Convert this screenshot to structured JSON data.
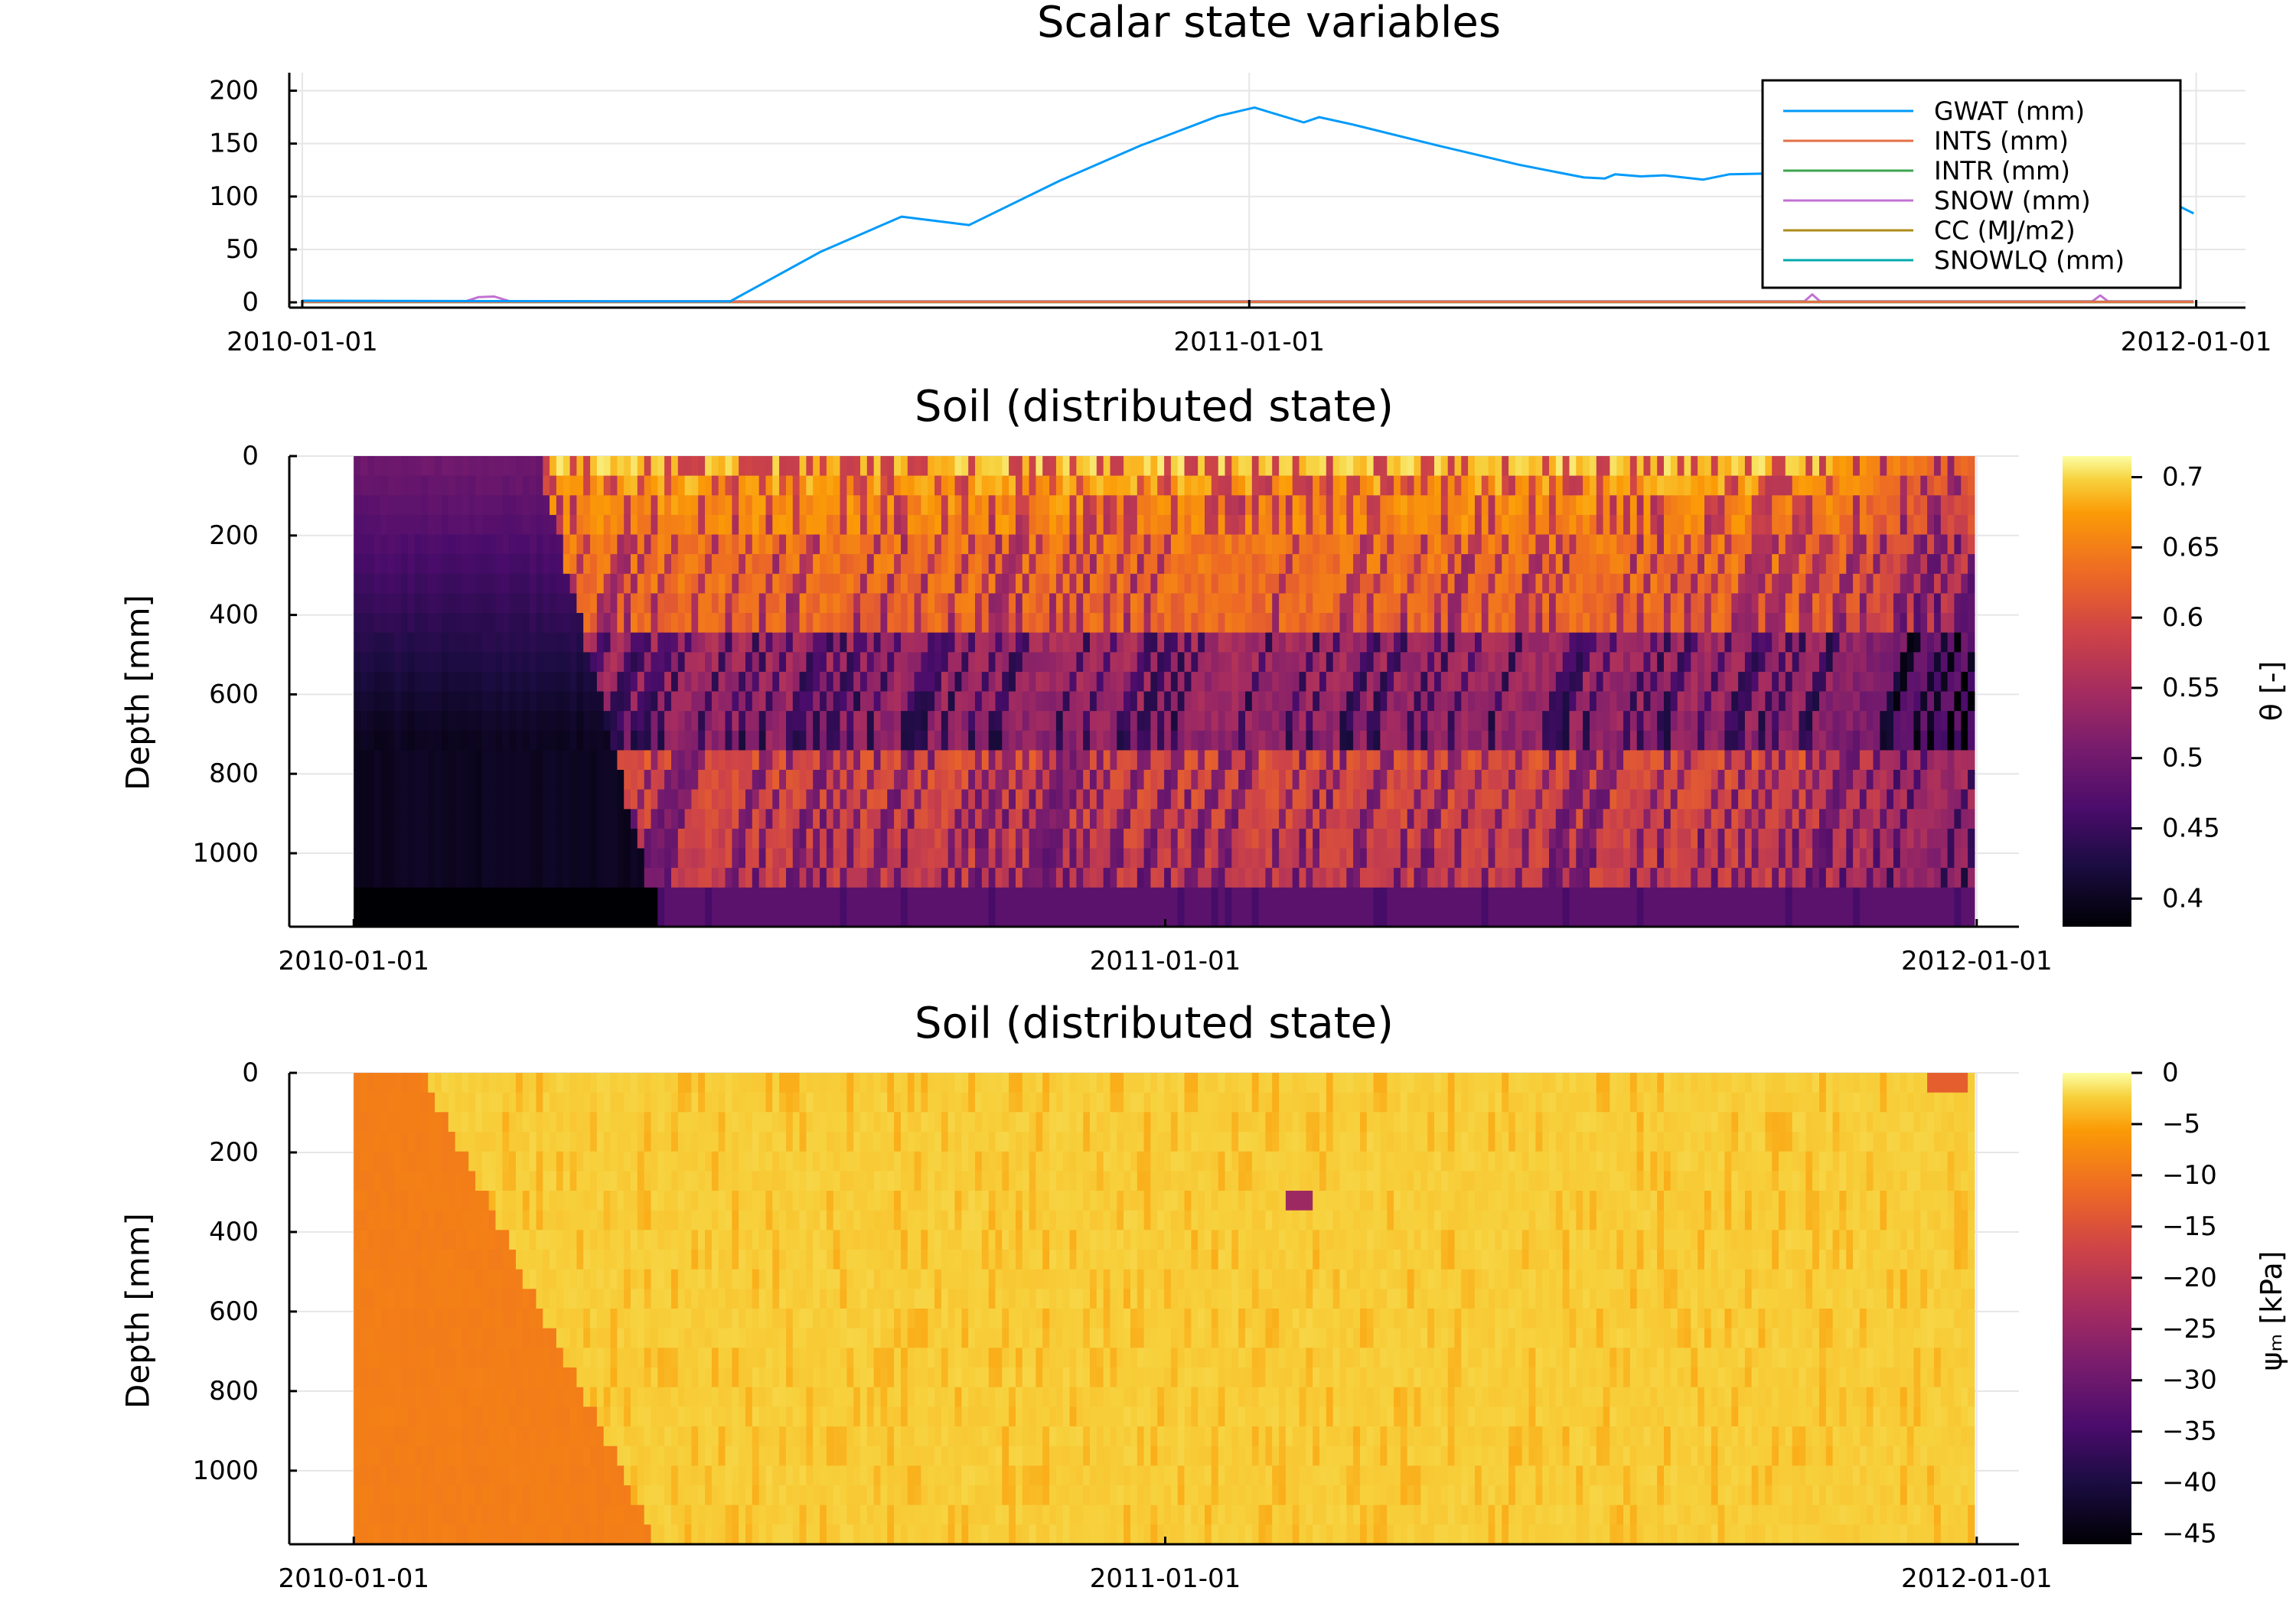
{
  "chart_data": [
    {
      "type": "line",
      "title": "Scalar state variables",
      "xlabel": "",
      "ylabel": "",
      "x_axis": "date",
      "xlim": [
        "2009-12-27",
        "2012-01-20"
      ],
      "ylim": [
        -5,
        217
      ],
      "xticks": [
        "2010-01-01",
        "2011-01-01",
        "2012-01-01"
      ],
      "yticks": [
        0,
        50,
        100,
        150,
        200
      ],
      "grid": true,
      "legend_position": "top-right",
      "series": [
        {
          "name": "GWAT (mm)",
          "color": "#009AFA",
          "points": [
            [
              "2010-01-01",
              1.5
            ],
            [
              "2010-03-01",
              1.2
            ],
            [
              "2010-05-01",
              1.0
            ],
            [
              "2010-06-15",
              1.0
            ],
            [
              "2010-07-20",
              48
            ],
            [
              "2010-08-20",
              81
            ],
            [
              "2010-09-15",
              73
            ],
            [
              "2010-10-20",
              115
            ],
            [
              "2010-11-20",
              148
            ],
            [
              "2010-12-20",
              176
            ],
            [
              "2011-01-03",
              184
            ],
            [
              "2011-01-22",
              170
            ],
            [
              "2011-01-28",
              175
            ],
            [
              "2011-02-10",
              168
            ],
            [
              "2011-03-15",
              148
            ],
            [
              "2011-04-15",
              130
            ],
            [
              "2011-05-10",
              118
            ],
            [
              "2011-05-18",
              117
            ],
            [
              "2011-05-22",
              121
            ],
            [
              "2011-06-01",
              119
            ],
            [
              "2011-06-10",
              120
            ],
            [
              "2011-06-25",
              116
            ],
            [
              "2011-07-05",
              121
            ],
            [
              "2011-07-25",
              122
            ],
            [
              "2011-08-20",
              120
            ],
            [
              "2011-09-10",
              114
            ],
            [
              "2011-10-10",
              109
            ],
            [
              "2011-11-05",
              138
            ],
            [
              "2011-11-20",
              134
            ],
            [
              "2011-12-31",
              84
            ]
          ]
        },
        {
          "name": "INTS (mm)",
          "color": "#E26F46",
          "points": [
            [
              "2010-01-01",
              0.4
            ],
            [
              "2011-12-31",
              0.4
            ]
          ]
        },
        {
          "name": "INTR (mm)",
          "color": "#3EA44E",
          "points": [
            [
              "2010-01-01",
              0.6
            ],
            [
              "2011-12-31",
              0.6
            ]
          ]
        },
        {
          "name": "SNOW (mm)",
          "color": "#C271D2",
          "points": [
            [
              "2010-01-01",
              1.0
            ],
            [
              "2010-03-05",
              1.0
            ],
            [
              "2010-03-10",
              5.0
            ],
            [
              "2010-03-16",
              5.5
            ],
            [
              "2010-03-22",
              1.0
            ],
            [
              "2011-08-03",
              1.0
            ],
            [
              "2011-08-06",
              7.5
            ],
            [
              "2011-08-09",
              1.0
            ],
            [
              "2011-11-22",
              1.0
            ],
            [
              "2011-11-25",
              6.5
            ],
            [
              "2011-11-28",
              1.0
            ],
            [
              "2011-12-31",
              1.0
            ]
          ]
        },
        {
          "name": "CC (MJ/m2)",
          "color": "#AC8D18",
          "points": [
            [
              "2010-01-01",
              0.2
            ],
            [
              "2011-12-31",
              0.2
            ]
          ]
        },
        {
          "name": "SNOWLQ (mm)",
          "color": "#00A9AD",
          "points": [
            [
              "2010-01-01",
              0.3
            ],
            [
              "2011-12-31",
              0.3
            ]
          ]
        }
      ]
    },
    {
      "type": "heatmap",
      "title": "Soil (distributed state)",
      "xlabel": "",
      "ylabel": "Depth [mm]",
      "x_axis": "date",
      "xlim": [
        "2009-12-03",
        "2012-01-20"
      ],
      "ylim": [
        0,
        1185
      ],
      "y_inverted": true,
      "xticks": [
        "2010-01-01",
        "2011-01-01",
        "2012-01-01"
      ],
      "yticks": [
        0,
        200,
        400,
        600,
        800,
        1000
      ],
      "grid": true,
      "colorscale": "inferno",
      "colorbar_label": "θ [-]",
      "colorbar_range": [
        0.38,
        0.715
      ],
      "colorbar_ticks": [
        0.4,
        0.45,
        0.5,
        0.55,
        0.6,
        0.65,
        0.7
      ],
      "data_extent": {
        "x": [
          "2010-01-01",
          "2011-12-31"
        ],
        "depth": [
          0,
          1185
        ]
      },
      "layer_bottoms": [
        50,
        100,
        200,
        450,
        750,
        1100,
        1185
      ],
      "features": [
        {
          "kind": "dry wedge before wetting front",
          "start": "2010-01-01",
          "end_top": "2010-03-25",
          "end_bottom": "2010-05-18",
          "value_top": 0.5,
          "value_deep": 0.4
        },
        {
          "kind": "wet season",
          "start": "2010-05-18",
          "end": "2011-12-25",
          "value_top": 0.66,
          "value_deep": 0.58
        },
        {
          "kind": "deepest layer",
          "depth": [
            1100,
            1185
          ],
          "value_before": 0.38,
          "value_after": 0.48
        }
      ]
    },
    {
      "type": "heatmap",
      "title": "Soil (distributed state)",
      "xlabel": "",
      "ylabel": "Depth [mm]",
      "x_axis": "date",
      "xlim": [
        "2009-12-03",
        "2012-01-20"
      ],
      "ylim": [
        0,
        1185
      ],
      "y_inverted": true,
      "xticks": [
        "2010-01-01",
        "2011-01-01",
        "2012-01-01"
      ],
      "yticks": [
        0,
        200,
        400,
        600,
        800,
        1000
      ],
      "grid": true,
      "colorscale": "inferno",
      "colorbar_label": "ψₘ [kPa]",
      "colorbar_range": [
        -46,
        0
      ],
      "colorbar_ticks": [
        0,
        -5,
        -10,
        -15,
        -20,
        -25,
        -30,
        -35,
        -40,
        -45
      ],
      "data_extent": {
        "x": [
          "2010-01-01",
          "2011-12-31"
        ],
        "depth": [
          0,
          1185
        ]
      },
      "features": [
        {
          "kind": "dry wedge before wetting front",
          "start": "2010-01-01",
          "end_top": "2010-02-01",
          "end_bottom": "2010-05-18",
          "value": -9
        },
        {
          "kind": "wet period",
          "start": "2010-05-18",
          "end": "2011-12-31",
          "value": -2.5
        },
        {
          "kind": "dry spot",
          "date": "2011-03-01",
          "depth": [
            300,
            350
          ],
          "value": -24
        },
        {
          "kind": "late-season drying",
          "start": "2011-12-10",
          "end": "2011-12-28",
          "depth": [
            0,
            50
          ],
          "value": -13
        }
      ]
    }
  ]
}
